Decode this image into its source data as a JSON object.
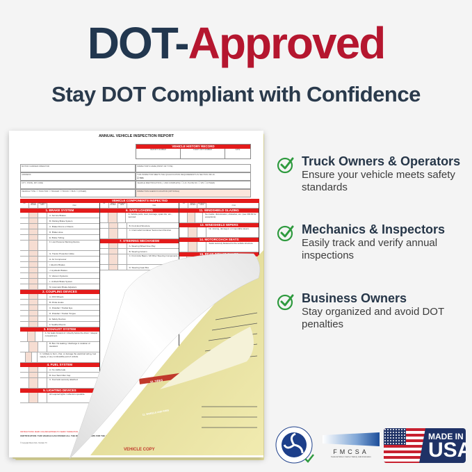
{
  "header": {
    "title_part1": "DOT-",
    "title_part2": "Approved",
    "subtitle": "Stay DOT Compliant with Confidence"
  },
  "colors": {
    "navy": "#22374f",
    "red": "#b5162f",
    "form_red": "#e31b1b",
    "check_green": "#2e9a3e",
    "carbon_yellow": "#efe9a8"
  },
  "form": {
    "title": "ANNUAL VEHICLE INSPECTION REPORT",
    "history": {
      "title": "VEHICLE HISTORY RECORD",
      "cols": [
        "REPORT NUMBER",
        "FLEET UNIT NUMBER",
        "DATE"
      ]
    },
    "fields": [
      "MOTOR CARRIER OPERATOR",
      "INSPECTOR'S NAME (PRINT OR TYPE)",
      "ADDRESS",
      "THIS INSPECTOR MEETS THE QUALIFICATION REQUIREMENTS IN SECTION 396.19.",
      "CITY, STATE, ZIP CODE",
      "VEHICLE IDENTIFICATION (✓ AND COMPLETE):  ☐ LIC. PLATE NO.  ☐ VIN  ☐ (OTHER)",
      "VEHICLE TYPE:  ☐ TRACTOR  ☐ TRAILER  ☐ TRUCK  ☐ BUS  ☐ (OTHER)",
      "INSPECTION AGENCY/LOCATION (OPTIONAL)"
    ],
    "yes": "☐ YES",
    "components_title": "VEHICLE COMPONENTS INSPECTED",
    "col_heads": [
      "OK",
      "NEEDS REPAIR",
      "REPAIRED DATE",
      "ITEM"
    ],
    "columns": [
      [
        {
          "h": "1. BRAKE SYSTEM"
        },
        "A. Service Brakes",
        "B. Parking Brake System",
        "C. Brake Drums or Rotors",
        "D. Brake Hose",
        "E. Brake Tubing",
        "F. Low Pressure Warning Device",
        "G. Tractor Protection Valve",
        "H. Air Compressor",
        "I. Electric Brakes",
        "J. Hydraulic Brakes",
        "K. Vacuum Systems",
        "L. Antilock Brake System",
        "M. Automatic Brake Adjusters",
        {
          "h": "2. COUPLING DEVICES"
        },
        "A. Fifth Wheels",
        "B. Pintle Hooks",
        "C. Drawbar / Towbar Eye",
        "D. Drawbar / Towbar Tongue",
        "E. Safety Devices",
        "F. Saddle-Mounts",
        {
          "h": "3. EXHAUST SYSTEM"
        },
        "A. No leaks forward of / directly below the driver / sleeper compartment.",
        "B. Bus: No leaking / discharge in violation of standard.",
        "C. Unlikely to burn, char, or damage the electrical wiring, fuel supply, or any combustible part of vehicle.",
        {
          "h": "4. FUEL SYSTEM"
        },
        "A. No visible leak.",
        "B. Fuel Tank Filler Cap",
        "C. Fuel tank securely attached.",
        {
          "h": "5. LIGHTING DEVICES"
        },
        "All required lights / reflectors operable."
      ],
      [
        {
          "h": "6. SAFE LOADING"
        },
        "A. Vehicle parts, load, dunnage, spare tire, etc., secured.",
        "B. Front End Structure",
        "C. Intermodal Container Securement Devices",
        {
          "h": "7. STEERING MECHANISM"
        },
        "A. Steering Wheel Free Play",
        "B. Steering Column",
        "C. Front Axle Beam / All Other Steering Components",
        "D. Steering Gear Box"
      ],
      [
        {
          "h": "11. WINDSHIELD GLAZING"
        },
        "No cracks, discoloration, obstacles, etc. (see 393.60 for exceptions).",
        {
          "h": "13. WINDSHIELD WIPERS"
        },
        "No missing, damaged, or inoperable wipers.",
        {
          "h": "14. MOTORCOACH SEATS"
        },
        "Seats securely fastened to the vehicle structure.",
        {
          "h": "15. REAR IMPACT GUARD"
        },
        "In place, securely attached, proper size, proper placement (see 393.86).",
        {
          "h": "16. OTHER"
        },
        "List any other condition(s) which may prevent safe operation of this vehicle."
      ]
    ],
    "instructions": "INSTRUCTIONS: MARK COLUMN ENTRIES TO VERIFY INSPECTION",
    "certification": "CERTIFICATION: THIS VEHICLE HAS PASSED ALL THE INSPECTION ITEMS FOR THE ANNUAL VEHICLE INSPECTION IN ACCORDANCE WITH 49 CFR PART 396.",
    "copyright": "© Copyright Buck USA • Tomball, TX",
    "copy_label": "VEHICLE COPY",
    "under_sections": [
      "10. TIRES",
      "11. WHEELS AND RIMS"
    ]
  },
  "features": [
    {
      "icon": "check-circle-icon",
      "title": "Truck Owners & Operators",
      "desc": "Ensure your vehicle meets safety standards"
    },
    {
      "icon": "check-circle-icon",
      "title": "Mechanics & Inspectors",
      "desc": "Easily track and verify annual inspections"
    },
    {
      "icon": "check-circle-icon",
      "title": "Business Owners",
      "desc": "Stay organized and avoid DOT penalties"
    }
  ],
  "logos": {
    "dot_seal": "DEPARTMENT OF TRANSPORTATION · UNITED STATES OF AMERICA",
    "fmcsa": "FMCSA",
    "fmcsa_sub": "Federal Motor Carrier Safety Administration",
    "made_in": "MADE IN",
    "usa": "USA"
  }
}
